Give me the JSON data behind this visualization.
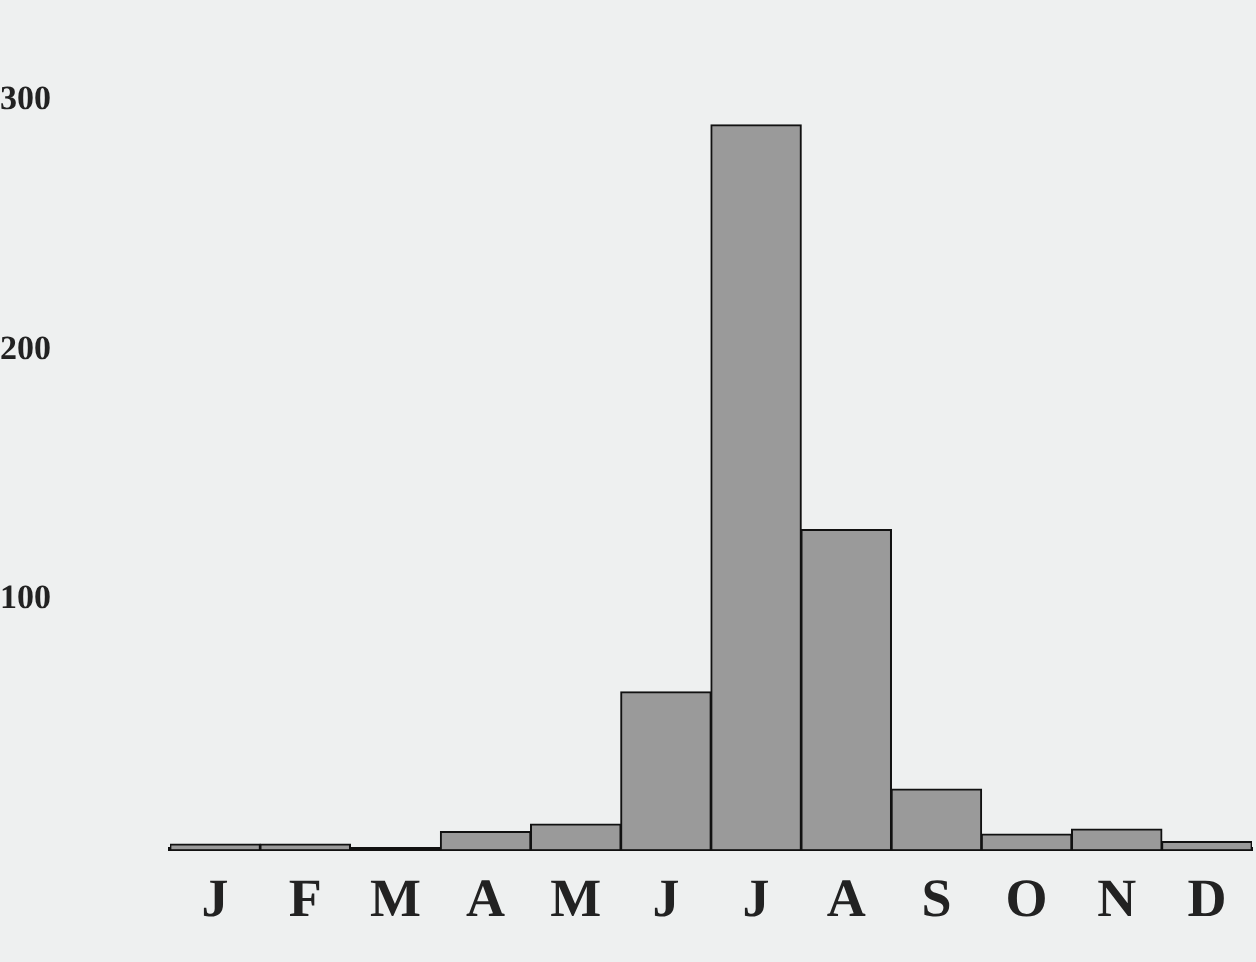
{
  "chart_data": {
    "type": "bar",
    "categories": [
      "J",
      "F",
      "M",
      "A",
      "M",
      "J",
      "J",
      "A",
      "S",
      "O",
      "N",
      "D"
    ],
    "values": [
      2,
      2,
      0,
      7,
      10,
      63,
      290,
      128,
      24,
      6,
      8,
      3
    ],
    "color": "#9a9a9a",
    "ylim": [
      0,
      300
    ],
    "yticks": [
      100,
      200,
      300
    ],
    "grid": false,
    "legend": false
  }
}
